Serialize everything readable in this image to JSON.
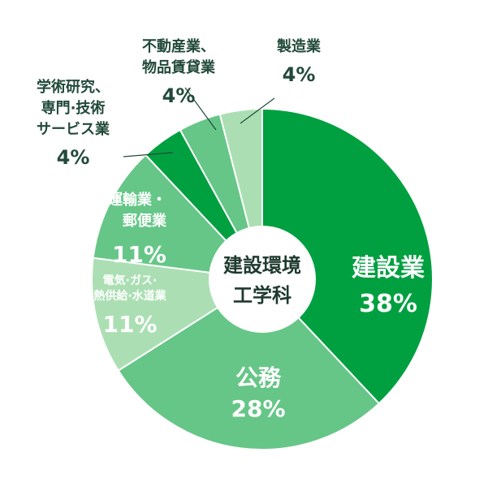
{
  "center_label": [
    "建設環境",
    "工学科"
  ],
  "chart_data": {
    "type": "pie",
    "donut": true,
    "unit": "%",
    "categories": [
      "建設業",
      "公務",
      "電気·ガス·熱供給·水道業",
      "運輸業・郵便業",
      "学術研究、専門·技術サービス業",
      "不動産業、物品賃貸業",
      "製造業"
    ],
    "values": [
      38,
      28,
      11,
      11,
      4,
      4,
      4
    ],
    "colors": [
      "#00a040",
      "#66c687",
      "#abdfb3",
      "#66c687",
      "#00a040",
      "#66c687",
      "#abdfb3"
    ],
    "labels": [
      {
        "lines": [
          "建設業"
        ],
        "value": "38%"
      },
      {
        "lines": [
          "公務"
        ],
        "value": "28%"
      },
      {
        "lines": [
          "電気·ガス·",
          "熱供給·水道業"
        ],
        "value": "11%"
      },
      {
        "lines": [
          "運輸業・",
          "郵便業"
        ],
        "value": "11%"
      },
      {
        "lines": [
          "学術研究、",
          "専門·技術",
          "サービス業"
        ],
        "value": "4%"
      },
      {
        "lines": [
          "不動産業、",
          "物品賃貸業"
        ],
        "value": "4%"
      },
      {
        "lines": [
          "製造業"
        ],
        "value": "4%"
      }
    ]
  }
}
